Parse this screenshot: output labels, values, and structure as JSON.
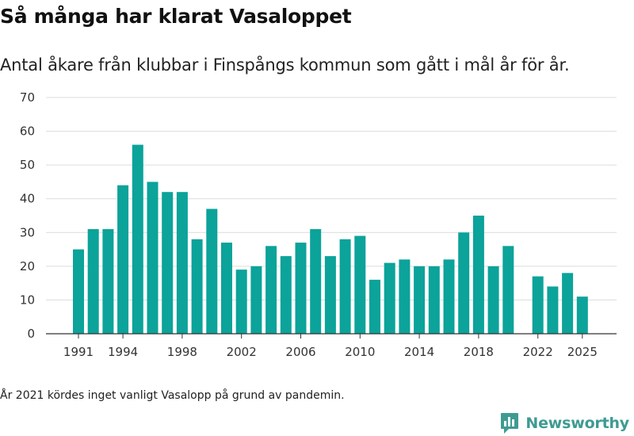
{
  "title": "Så många har klarat Vasaloppet",
  "subtitle": "Antal åkare från klubbar i Finspångs kommun som gått i mål år för år.",
  "footnote": "År 2021 kördes inget vanligt Vasalopp på grund av pandemin.",
  "brand": {
    "name": "Newsworthy",
    "icon": "newsworthy-logo-icon",
    "color": "#3e9b92"
  },
  "chart_data": {
    "type": "bar",
    "title": "Så många har klarat Vasaloppet",
    "xlabel": "",
    "ylabel": "",
    "ylim": [
      0,
      70
    ],
    "yticks": [
      0,
      10,
      20,
      30,
      40,
      50,
      60,
      70
    ],
    "xticks": [
      "1991",
      "1994",
      "1998",
      "2002",
      "2006",
      "2010",
      "2014",
      "2018",
      "2022",
      "2025"
    ],
    "bar_color": "#0ba39a",
    "grid": true,
    "categories": [
      "1991",
      "1992",
      "1993",
      "1994",
      "1995",
      "1996",
      "1997",
      "1998",
      "1999",
      "2000",
      "2001",
      "2002",
      "2003",
      "2004",
      "2005",
      "2006",
      "2007",
      "2008",
      "2009",
      "2010",
      "2011",
      "2012",
      "2013",
      "2014",
      "2015",
      "2016",
      "2017",
      "2018",
      "2019",
      "2020",
      "2021",
      "2022",
      "2023",
      "2024",
      "2025"
    ],
    "values": [
      25,
      31,
      31,
      44,
      56,
      45,
      42,
      42,
      28,
      37,
      27,
      19,
      20,
      26,
      23,
      27,
      31,
      23,
      28,
      29,
      16,
      21,
      22,
      20,
      20,
      22,
      30,
      35,
      20,
      26,
      null,
      17,
      14,
      18,
      11
    ]
  }
}
